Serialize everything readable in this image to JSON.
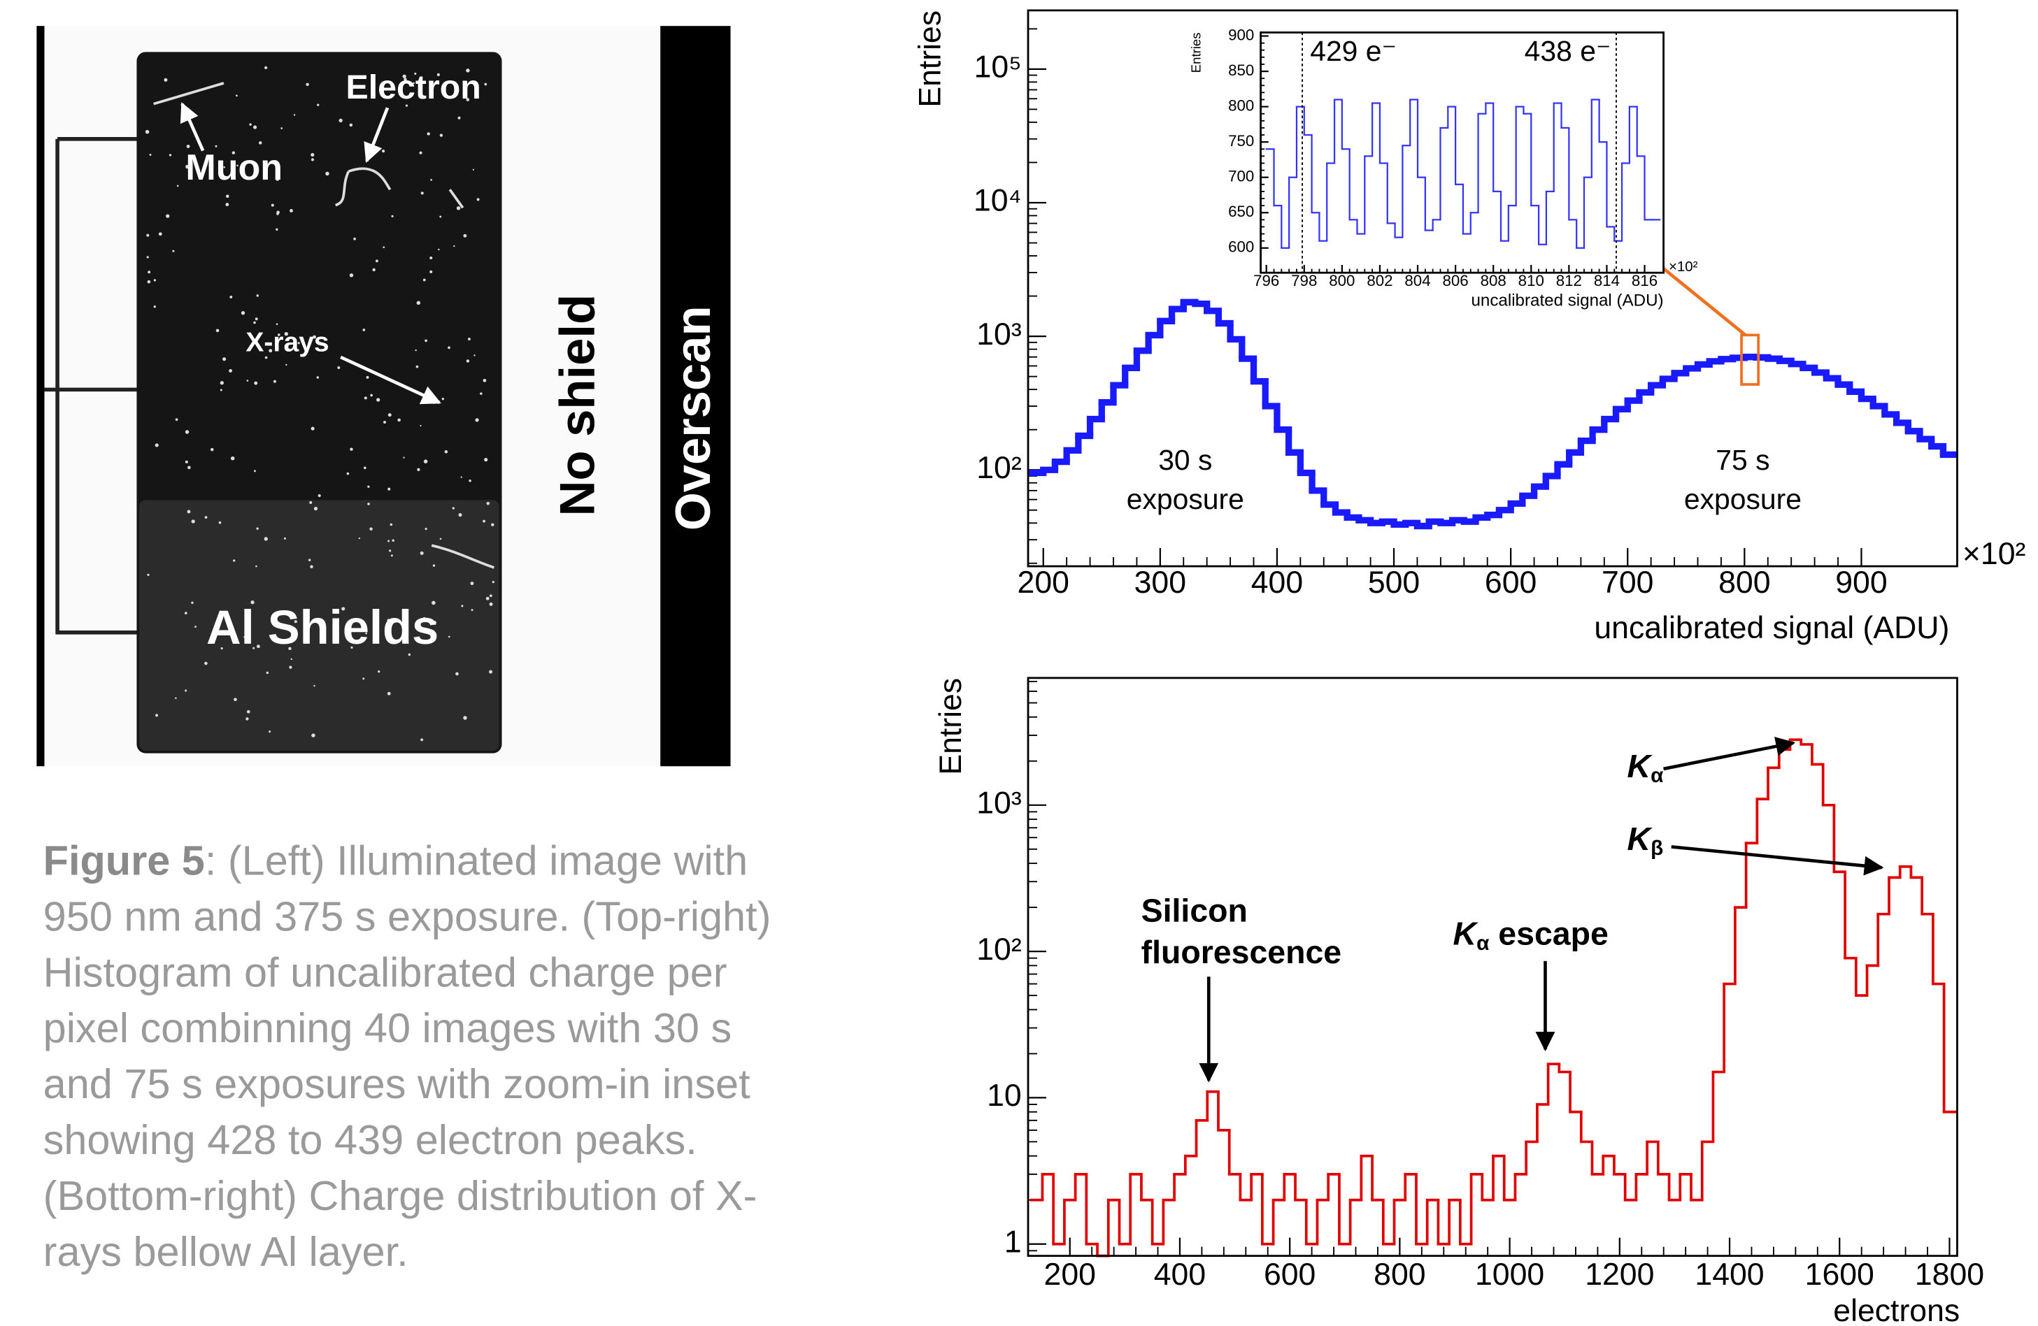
{
  "image": {
    "electron": "Electron",
    "muon": "Muon",
    "xrays": "X-rays",
    "al_shields": "Al Shields",
    "no_shield": "No shield",
    "overscan": "Overscan"
  },
  "caption": {
    "label": "Figure 5",
    "lines": [
      ": (Left) Illuminated image with",
      "950 nm and 375 s exposure. (Top-right)",
      "Histogram of uncalibrated charge per",
      "pixel combinning 40 images with 30 s",
      "and 75 s exposures with zoom-in inset",
      "showing 428 to 439 electron peaks.",
      "(Bottom-right)  Charge distribution of X-",
      "rays bellow Al layer."
    ]
  },
  "chart_data": [
    {
      "type": "histogram",
      "y_label": "Entries",
      "x_label": "uncalibrated signal (ADU)",
      "x_multiplier": "×10²",
      "color": "#1a1aff",
      "log_y": true,
      "xlim": [
        187,
        982
      ],
      "ylim": [
        19,
        275000
      ],
      "xticks": [
        200,
        300,
        400,
        500,
        600,
        700,
        800,
        900
      ],
      "yticks": [
        {
          "value": 100,
          "label": "10²"
        },
        {
          "value": 1000,
          "label": "10³"
        },
        {
          "value": 10000,
          "label": "10⁴"
        },
        {
          "value": 100000,
          "label": "10⁵"
        }
      ],
      "annotations": [
        [
          "30 s",
          "exposure"
        ],
        [
          "75 s",
          "exposure"
        ]
      ],
      "bins": [
        190,
        200,
        210,
        220,
        230,
        240,
        250,
        260,
        270,
        280,
        290,
        300,
        310,
        320,
        330,
        340,
        350,
        360,
        370,
        380,
        390,
        400,
        410,
        420,
        430,
        440,
        450,
        460,
        470,
        480,
        490,
        500,
        510,
        520,
        530,
        540,
        550,
        560,
        570,
        580,
        590,
        600,
        610,
        620,
        630,
        640,
        650,
        660,
        670,
        680,
        690,
        700,
        710,
        720,
        730,
        740,
        750,
        760,
        770,
        780,
        790,
        800,
        810,
        820,
        830,
        840,
        850,
        860,
        870,
        880,
        890,
        900,
        910,
        920,
        930,
        940,
        950,
        960,
        970,
        980
      ],
      "values": [
        95,
        100,
        115,
        140,
        180,
        240,
        320,
        430,
        580,
        780,
        1020,
        1300,
        1600,
        1800,
        1750,
        1550,
        1250,
        950,
        680,
        460,
        300,
        200,
        135,
        95,
        70,
        55,
        48,
        44,
        42,
        40,
        41,
        39,
        40,
        38,
        41,
        40,
        42,
        41,
        44,
        46,
        50,
        56,
        64,
        75,
        90,
        110,
        135,
        165,
        200,
        240,
        285,
        330,
        380,
        430,
        480,
        530,
        575,
        615,
        650,
        675,
        690,
        700,
        695,
        680,
        655,
        620,
        580,
        535,
        485,
        435,
        385,
        340,
        300,
        260,
        225,
        195,
        170,
        150,
        130
      ]
    },
    {
      "type": "histogram",
      "y_label": "Entries",
      "x_label": "uncalibrated signal (ADU)",
      "x_multiplier": "×10²",
      "color": "#3333ff",
      "log_y": false,
      "xlim": [
        795.7,
        817
      ],
      "ylim": [
        565,
        905
      ],
      "xticks": [
        796,
        798,
        800,
        802,
        804,
        806,
        808,
        810,
        812,
        814,
        816
      ],
      "yticks": [
        600,
        650,
        700,
        750,
        800,
        850,
        900
      ],
      "markers": [
        {
          "value": 797.9,
          "label": "429 e⁻"
        },
        {
          "value": 814.5,
          "label": "438 e⁻"
        }
      ],
      "bins": [
        796.0,
        796.4,
        796.8,
        797.2,
        797.6,
        798.0,
        798.4,
        798.8,
        799.2,
        799.6,
        800.0,
        800.4,
        800.8,
        801.2,
        801.6,
        802.0,
        802.4,
        802.8,
        803.2,
        803.6,
        804.0,
        804.4,
        804.8,
        805.2,
        805.6,
        806.0,
        806.4,
        806.8,
        807.2,
        807.6,
        808.0,
        808.4,
        808.8,
        809.2,
        809.6,
        810.0,
        810.4,
        810.8,
        811.2,
        811.6,
        812.0,
        812.4,
        812.8,
        813.2,
        813.6,
        814.0,
        814.4,
        814.8,
        815.2,
        815.6,
        816.0,
        816.4,
        816.8
      ],
      "values": [
        740,
        660,
        600,
        700,
        800,
        760,
        650,
        610,
        720,
        810,
        740,
        640,
        620,
        730,
        805,
        720,
        635,
        615,
        745,
        810,
        700,
        625,
        640,
        770,
        800,
        690,
        620,
        650,
        790,
        805,
        680,
        610,
        660,
        800,
        790,
        660,
        605,
        680,
        805,
        770,
        640,
        600,
        700,
        810,
        750,
        630,
        610,
        720,
        800,
        730,
        640,
        640
      ]
    },
    {
      "type": "histogram",
      "y_label": "Entries",
      "x_label": "electrons",
      "color": "#e00000",
      "log_y": true,
      "xlim": [
        124,
        1814
      ],
      "ylim": [
        0.83,
        7400
      ],
      "xticks": [
        200,
        400,
        600,
        800,
        1000,
        1200,
        1400,
        1600,
        1800
      ],
      "yticks": [
        1,
        10,
        {
          "value": 100,
          "label": "10²"
        },
        {
          "value": 1000,
          "label": "10³"
        }
      ],
      "annotations": [
        {
          "lines": [
            "Silicon",
            "fluorescence"
          ]
        },
        {
          "base": "K",
          "sub": "α",
          "rest": " escape"
        },
        {
          "base": "K",
          "sub": "α"
        },
        {
          "base": "K",
          "sub": "β"
        }
      ],
      "bins": [
        130,
        150,
        170,
        190,
        210,
        230,
        250,
        270,
        290,
        310,
        330,
        350,
        370,
        390,
        410,
        430,
        450,
        470,
        490,
        510,
        530,
        550,
        570,
        590,
        610,
        630,
        650,
        670,
        690,
        710,
        730,
        750,
        770,
        790,
        810,
        830,
        850,
        870,
        890,
        910,
        930,
        950,
        970,
        990,
        1010,
        1030,
        1050,
        1070,
        1090,
        1110,
        1130,
        1150,
        1170,
        1190,
        1210,
        1230,
        1250,
        1270,
        1290,
        1310,
        1330,
        1350,
        1370,
        1390,
        1410,
        1430,
        1450,
        1470,
        1490,
        1510,
        1530,
        1550,
        1570,
        1590,
        1610,
        1630,
        1650,
        1670,
        1690,
        1710,
        1730,
        1750,
        1770,
        1790,
        1810
      ],
      "values": [
        2,
        3,
        1,
        2,
        3,
        1,
        0,
        2,
        1,
        3,
        2,
        1,
        2,
        3,
        4,
        7,
        11,
        6,
        3,
        2,
        3,
        1,
        2,
        3,
        2,
        1,
        2,
        3,
        1,
        2,
        4,
        2,
        1,
        2,
        3,
        1,
        2,
        1,
        2,
        1,
        3,
        2,
        4,
        2,
        3,
        5,
        9,
        17,
        15,
        8,
        5,
        3,
        4,
        3,
        2,
        3,
        5,
        3,
        2,
        3,
        2,
        5,
        15,
        60,
        200,
        550,
        1100,
        1800,
        2400,
        2800,
        2600,
        1900,
        1000,
        350,
        90,
        50,
        80,
        180,
        320,
        380,
        320,
        180,
        60,
        8
      ]
    }
  ]
}
